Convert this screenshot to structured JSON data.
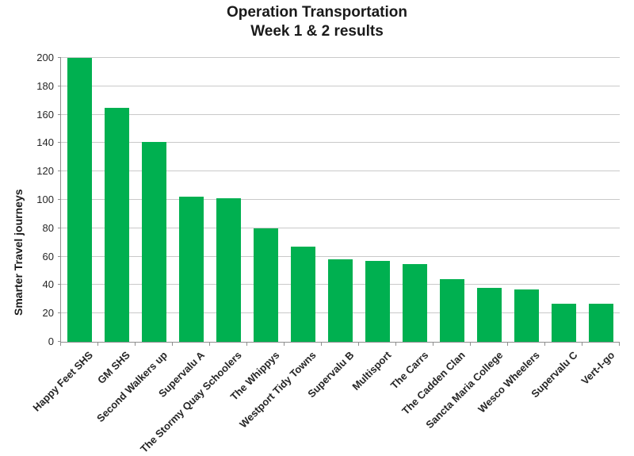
{
  "chart_data": {
    "type": "bar",
    "title": "Operation Transportation",
    "subtitle": "Week 1 & 2 results",
    "ylabel": "Smarter Travel journeys",
    "xlabel": "",
    "categories": [
      "Happy Feet SHS",
      "GM SHS",
      "Second Walkers up",
      "Supervalu A",
      "The Stormy Quay Schoolers",
      "The Whippys",
      "Westport Tidy Towns",
      "Supervalu B",
      "Multisport",
      "The Carrs",
      "The Cadden Clan",
      "Sancta Maria College",
      "Wesco Wheelers",
      "Supervalu C",
      "Vert-I-go"
    ],
    "values": [
      200,
      165,
      141,
      102,
      101,
      80,
      67,
      58,
      57,
      55,
      44,
      38,
      37,
      27,
      27
    ],
    "ylim": [
      0,
      200
    ],
    "ytick_step": 20,
    "grid": true,
    "legend": false,
    "bar_color": "#00B050",
    "gridline_color": "#C9C9C9",
    "axis_color": "#8F8F8F",
    "text_color": "#262626"
  }
}
